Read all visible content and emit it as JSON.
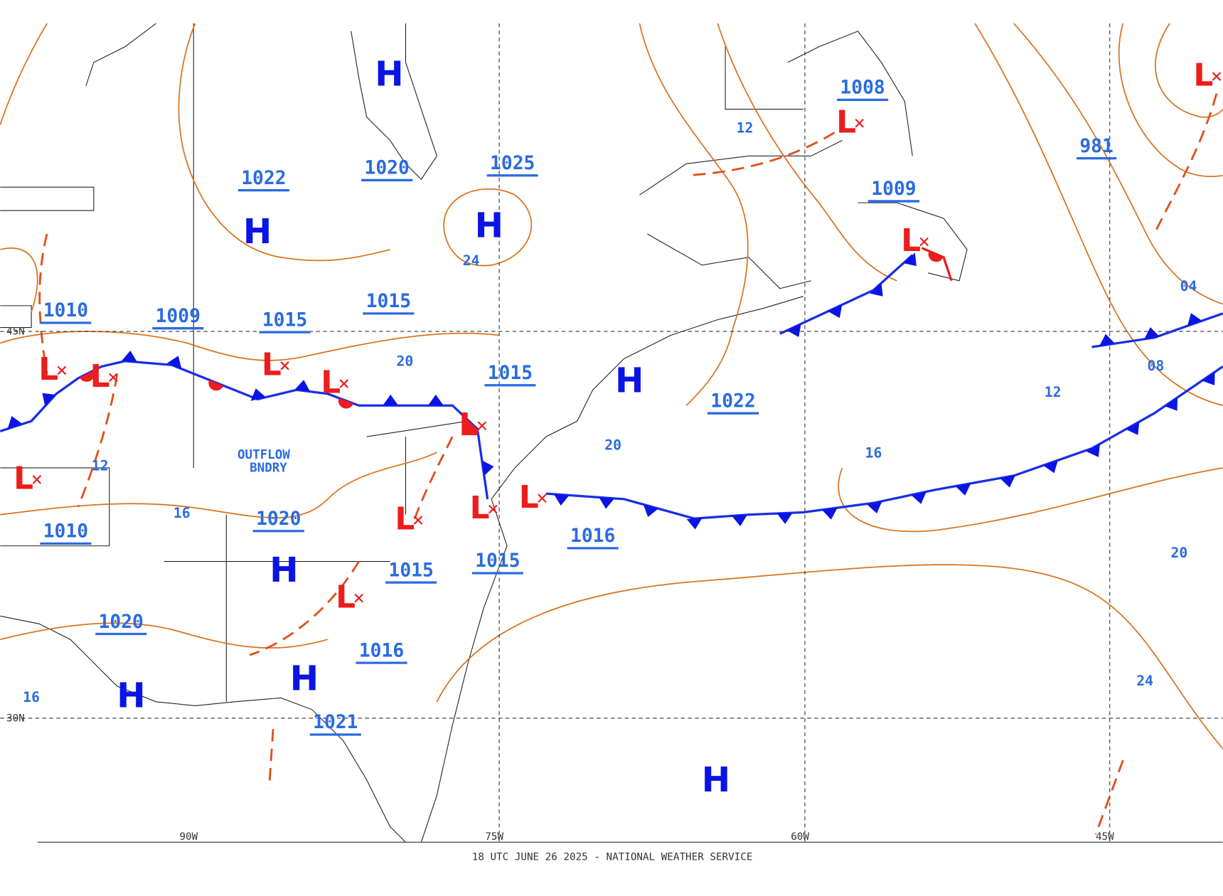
{
  "map": {
    "footer": "18 UTC JUNE 26 2025 - NATIONAL WEATHER SERVICE",
    "lat_labels": [
      "45N",
      "30N"
    ],
    "lon_labels": [
      "90W",
      "75W",
      "60W",
      "45W"
    ],
    "annotation": [
      "OUTFLOW",
      "BNDRY"
    ],
    "pressure_labels": [
      "1022",
      "1020",
      "1025",
      "1008",
      "1009",
      "981",
      "1010",
      "1009",
      "1015",
      "1015",
      "1015",
      "1022",
      "1010",
      "1020",
      "1016",
      "1015",
      "1015",
      "1020",
      "1016",
      "1021"
    ],
    "isobar_labels": [
      "12",
      "24",
      "20",
      "12",
      "16",
      "20",
      "16",
      "12",
      "08",
      "04",
      "20",
      "24",
      "16"
    ],
    "highs": [
      "H",
      "H",
      "H",
      "H",
      "H",
      "H",
      "H",
      "H"
    ],
    "lows": [
      "L",
      "L",
      "L",
      "L",
      "L",
      "L",
      "L",
      "L",
      "L",
      "L",
      "L",
      "L",
      "L"
    ]
  }
}
